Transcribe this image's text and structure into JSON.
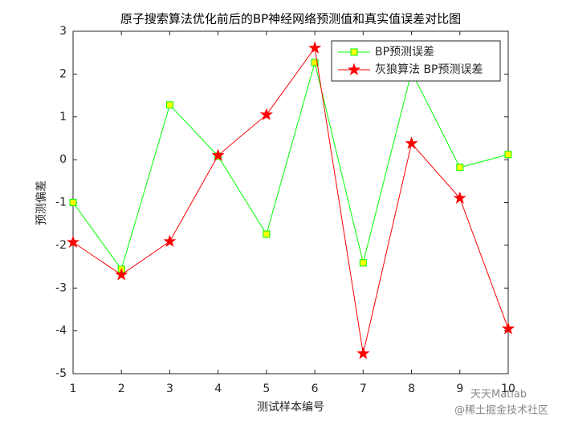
{
  "chart_data": {
    "type": "line",
    "title": "原子搜索算法优化前后的BP神经网络预测值和真实值误差对比图",
    "xlabel": "测试样本编号",
    "ylabel": "预测偏差",
    "x": [
      1,
      2,
      3,
      4,
      5,
      6,
      7,
      8,
      9,
      10
    ],
    "xlim": [
      1,
      10
    ],
    "xticks": [
      1,
      2,
      3,
      4,
      5,
      6,
      7,
      8,
      9,
      10
    ],
    "ylim": [
      -5,
      3
    ],
    "yticks": [
      -5,
      -4,
      -3,
      -2,
      -1,
      0,
      1,
      2,
      3
    ],
    "series": [
      {
        "name": "BP预测误差",
        "color": "#00ff00",
        "marker": "square",
        "marker_fill": "#ffff00",
        "values": [
          -1.0,
          -2.56,
          1.28,
          0.08,
          -1.74,
          2.27,
          -2.41,
          2.05,
          -0.18,
          0.12
        ]
      },
      {
        "name": "灰狼算法 BP预测误差",
        "color": "#ff0000",
        "marker": "star",
        "marker_fill": "#ff0000",
        "values": [
          -1.93,
          -2.69,
          -1.91,
          0.1,
          1.05,
          2.61,
          -4.53,
          0.38,
          -0.9,
          -3.95
        ]
      }
    ],
    "legend": "upper right",
    "grid": false,
    "watermark": [
      "天天Matlab",
      "@稀土掘金技术社区"
    ]
  }
}
